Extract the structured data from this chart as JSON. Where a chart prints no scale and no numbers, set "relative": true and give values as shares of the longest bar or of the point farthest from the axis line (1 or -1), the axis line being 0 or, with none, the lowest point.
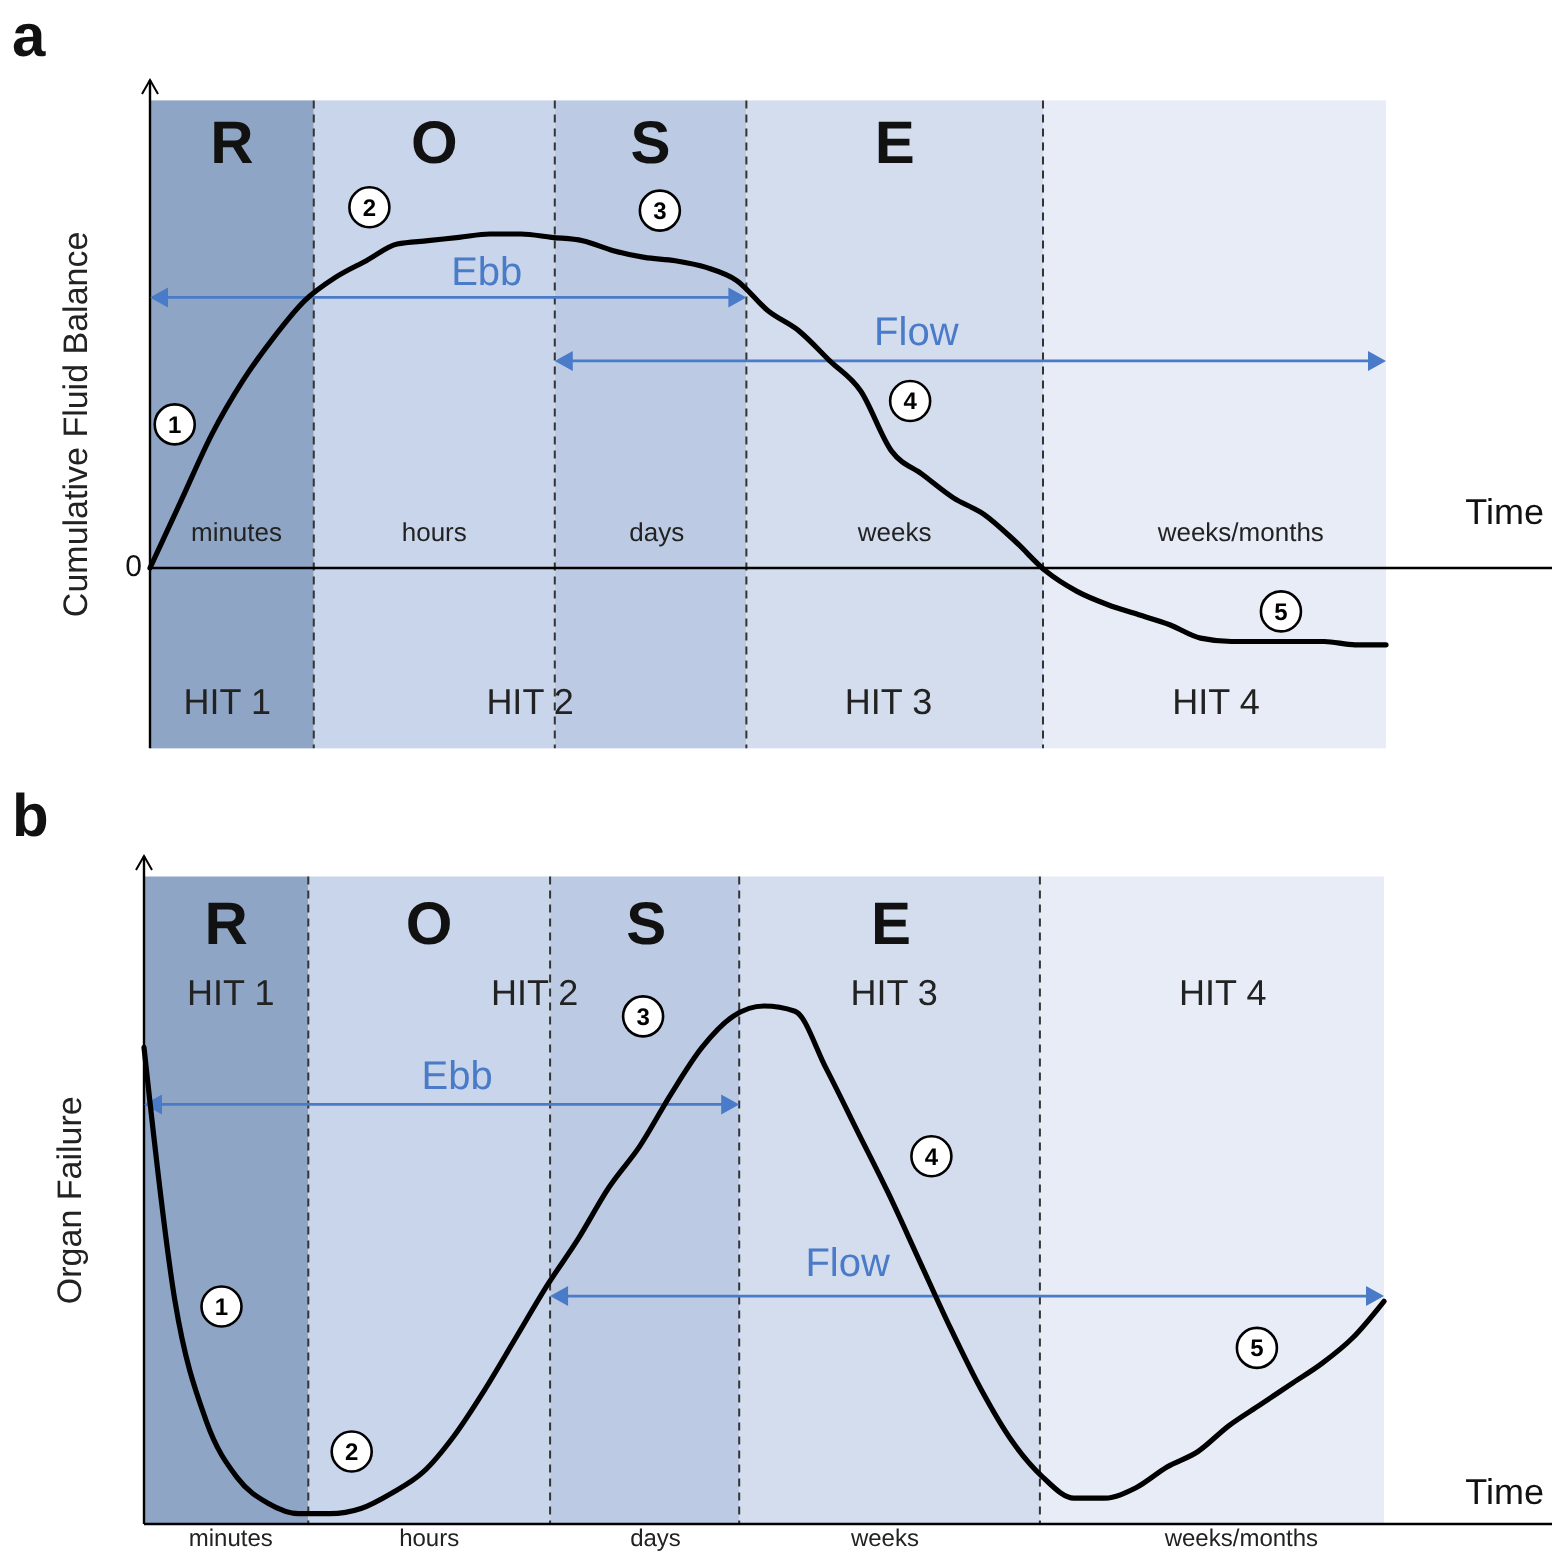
{
  "chart_data": [
    {
      "type": "line",
      "title": "a",
      "ylabel": "Cumulative Fluid Balance",
      "xlabel": "Time",
      "relative": true,
      "line_style": "solid",
      "categories": [
        null,
        null,
        null,
        null,
        null,
        null,
        null,
        null,
        null,
        null,
        null,
        null,
        null,
        null,
        null,
        null,
        null,
        null,
        null,
        null,
        null,
        null,
        null,
        null,
        null,
        null,
        null,
        null,
        null,
        null,
        null,
        null,
        null,
        null,
        null,
        null,
        null,
        null,
        null,
        null,
        null
      ],
      "series": [
        {
          "color": "#000000",
          "values": [
            0,
            0.2,
            0.4,
            0.56,
            0.69,
            0.8,
            0.87,
            0.92,
            0.97,
            0.98,
            0.99,
            1,
            1,
            0.99,
            0.98,
            0.95,
            0.93,
            0.92,
            0.9,
            0.86,
            0.77,
            0.71,
            0.62,
            0.53,
            0.35,
            0.28,
            0.21,
            0.16,
            0.08,
            -0.01,
            -0.07,
            -0.11,
            -0.14,
            -0.17,
            -0.21,
            -0.22,
            -0.22,
            -0.22,
            -0.22,
            -0.23,
            -0.23
          ]
        }
      ],
      "annotations": [
        "0",
        "minutes",
        "hours",
        "days",
        "weeks",
        "weeks/months",
        "HIT 1",
        "HIT 2",
        "HIT 3",
        "HIT 4",
        "Ebb",
        "Flow",
        "1",
        "2",
        "3",
        "4",
        "5",
        "R",
        "O",
        "S",
        "E"
      ]
    },
    {
      "type": "line",
      "title": "b",
      "ylabel": "Organ Failure",
      "xlabel": "Time",
      "relative": true,
      "line_style": "solid",
      "categories": [
        null,
        null,
        null,
        null,
        null,
        null,
        null,
        null,
        null,
        null,
        null,
        null,
        null,
        null,
        null,
        null,
        null,
        null,
        null,
        null,
        null,
        null,
        null,
        null,
        null,
        null,
        null,
        null,
        null,
        null,
        null,
        null,
        null,
        null,
        null,
        null,
        null,
        null,
        null,
        null,
        null
      ],
      "series": [
        {
          "color": "#000000",
          "values": [
            0.92,
            0.43,
            0.2,
            0.09,
            0.04,
            0.02,
            0.02,
            0.03,
            0.06,
            0.1,
            0.17,
            0.26,
            0.36,
            0.46,
            0.55,
            0.65,
            0.73,
            0.83,
            0.92,
            0.98,
            1,
            0.99,
            0.88,
            0.76,
            0.64,
            0.51,
            0.38,
            0.26,
            0.16,
            0.09,
            0.05,
            0.05,
            0.07,
            0.11,
            0.14,
            0.19,
            0.23,
            0.27,
            0.31,
            0.36,
            0.43
          ]
        }
      ],
      "annotations": [
        "minutes",
        "hours",
        "days",
        "weeks",
        "weeks/months",
        "HIT 1",
        "HIT 2",
        "HIT 3",
        "HIT 4",
        "Ebb",
        "Flow",
        "1",
        "2",
        "3",
        "4",
        "5",
        "R",
        "O",
        "S",
        "E"
      ]
    }
  ]
}
